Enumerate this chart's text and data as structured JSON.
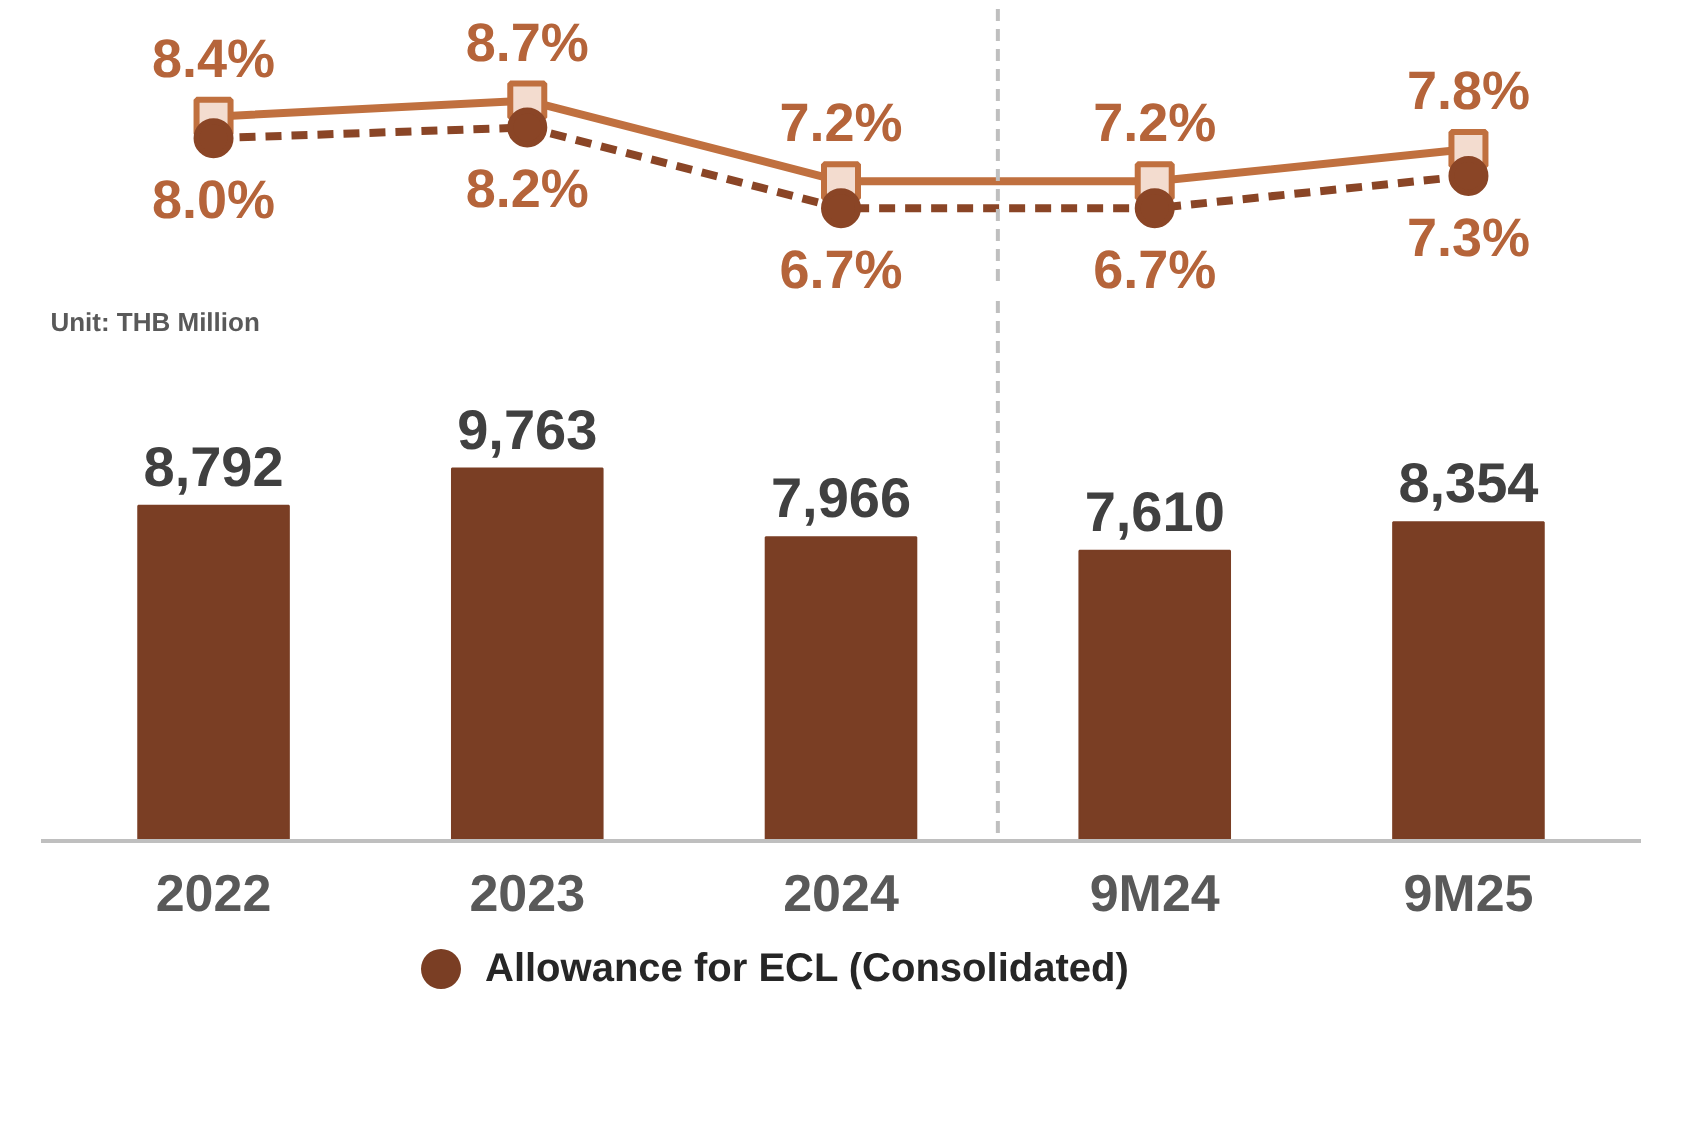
{
  "chart_data": [
    {
      "type": "line",
      "categories": [
        null,
        null,
        null,
        null,
        null
      ],
      "tick_labels": false,
      "grid": false,
      "series": [
        {
          "color": "#c0703f",
          "marker": "square",
          "line_style": "solid",
          "values": [
            8.4,
            8.7,
            7.2,
            7.2,
            7.8
          ],
          "value_labels": [
            "8.4%",
            "8.7%",
            "7.2%",
            "7.2%",
            "7.8%"
          ]
        },
        {
          "color": "#8a4526",
          "marker": "circle",
          "line_style": "dashed",
          "values": [
            8.0,
            8.2,
            6.7,
            6.7,
            7.3
          ],
          "value_labels": [
            "8.0%",
            "8.2%",
            "6.7%",
            "6.7%",
            "7.3%"
          ]
        }
      ]
    },
    {
      "type": "bar",
      "categories": [
        "2022",
        "2023",
        "2024",
        "9M24",
        "9M25"
      ],
      "tick_labels": "x",
      "grid": false,
      "legend": "bottom",
      "series": [
        {
          "name": "Allowance for ECL (Consolidated)",
          "color": "#7a3e24",
          "values": [
            8792,
            9763,
            7966,
            7610,
            8354
          ],
          "value_labels": [
            "8,792",
            "9,763",
            "7,966",
            "7,610",
            "8,354"
          ]
        }
      ],
      "annotations": [
        "Unit: THB Million"
      ]
    }
  ]
}
